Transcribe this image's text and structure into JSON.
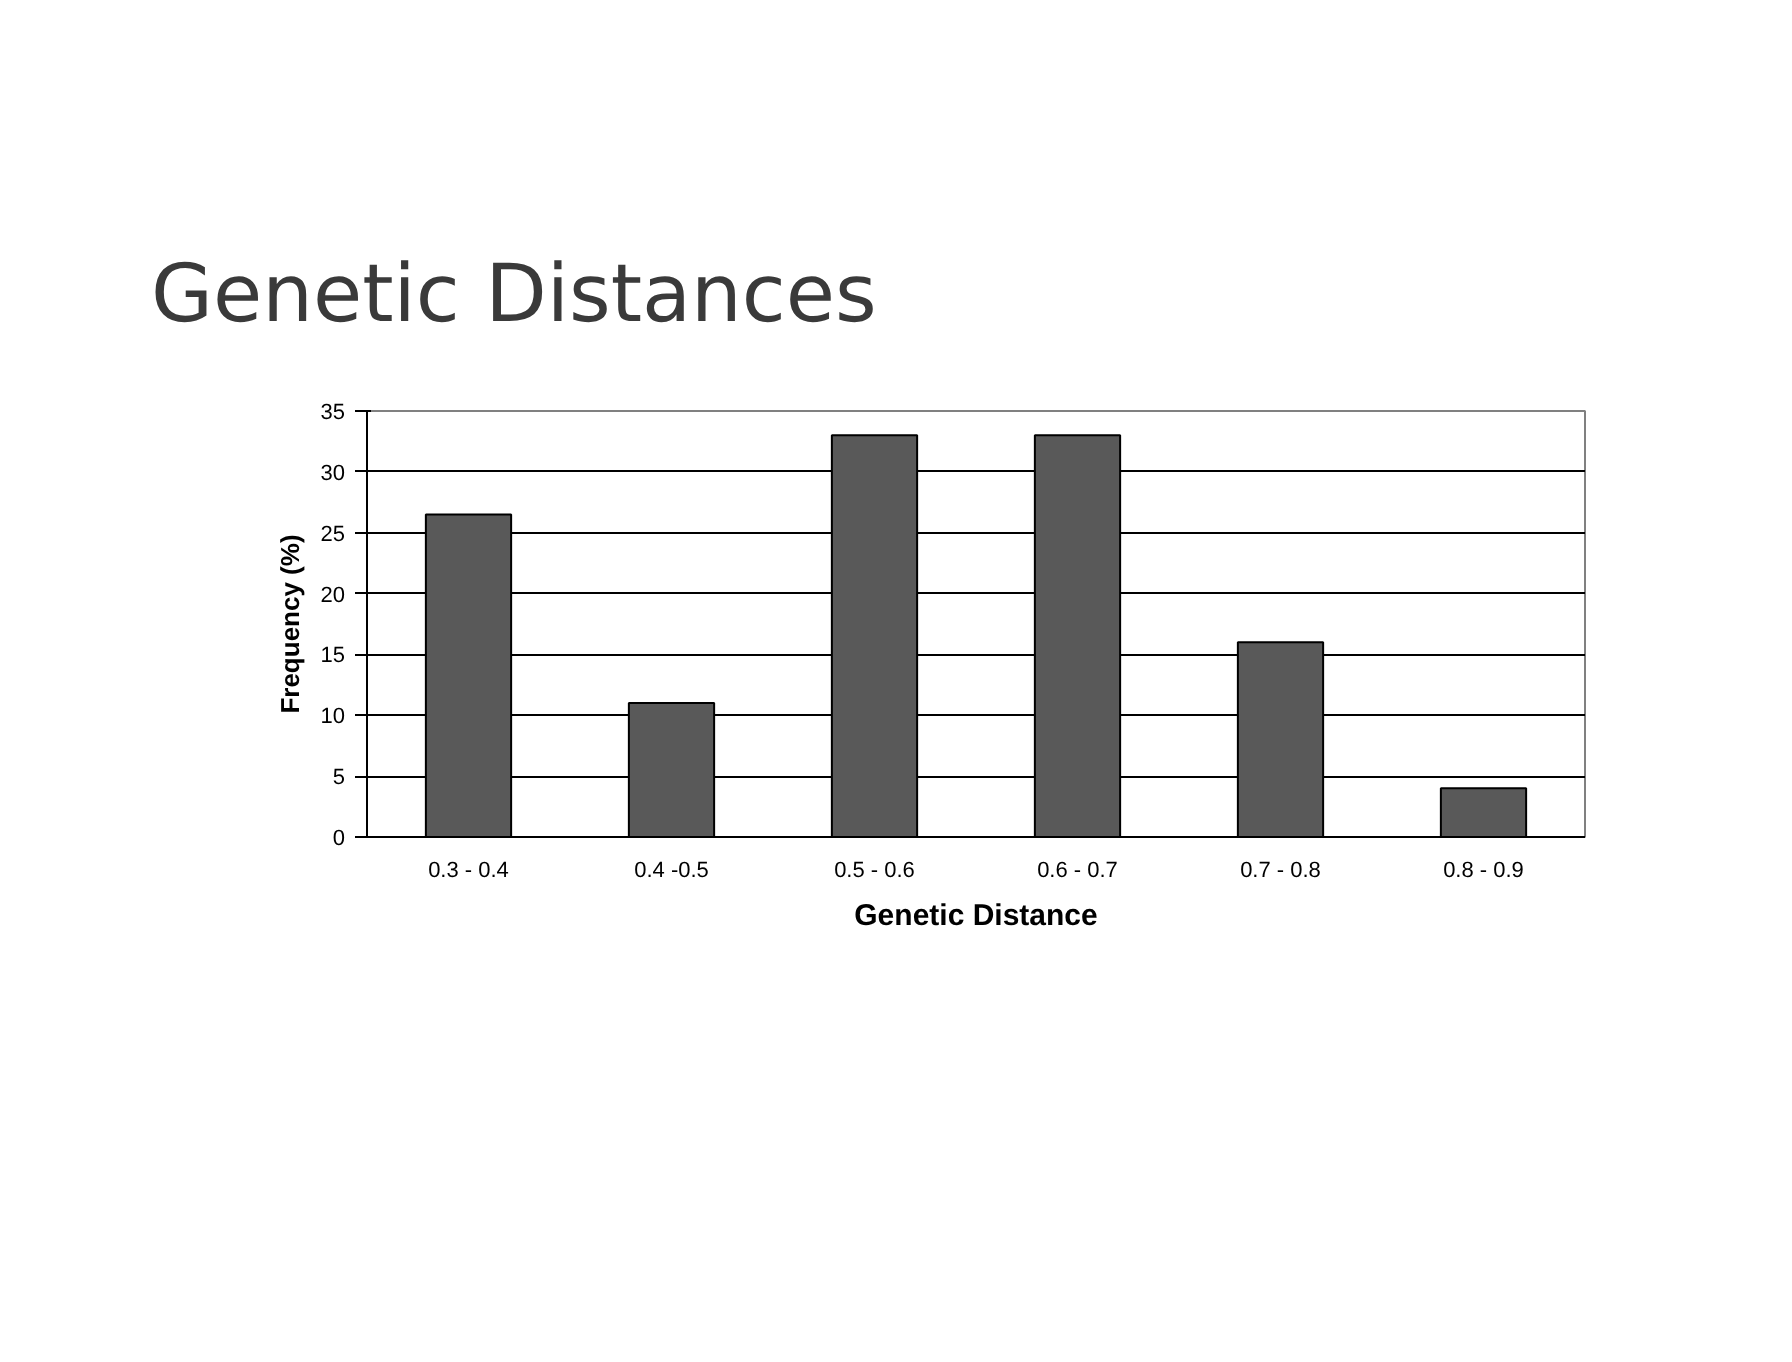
{
  "chart_data": {
    "type": "bar",
    "title": "Genetic Distances",
    "xlabel": "Genetic Distance",
    "ylabel": "Frequency (%)",
    "categories": [
      "0.3 - 0.4",
      "0.4 -0.5",
      "0.5 - 0.6",
      "0.6 - 0.7",
      "0.7 - 0.8",
      "0.8 - 0.9"
    ],
    "values": [
      26.5,
      11,
      33,
      33,
      16,
      4
    ],
    "color": "#595959",
    "ylim": [
      0,
      35
    ],
    "yticks": [
      0,
      5,
      10,
      15,
      20,
      25,
      30,
      35
    ],
    "grid": "y"
  }
}
